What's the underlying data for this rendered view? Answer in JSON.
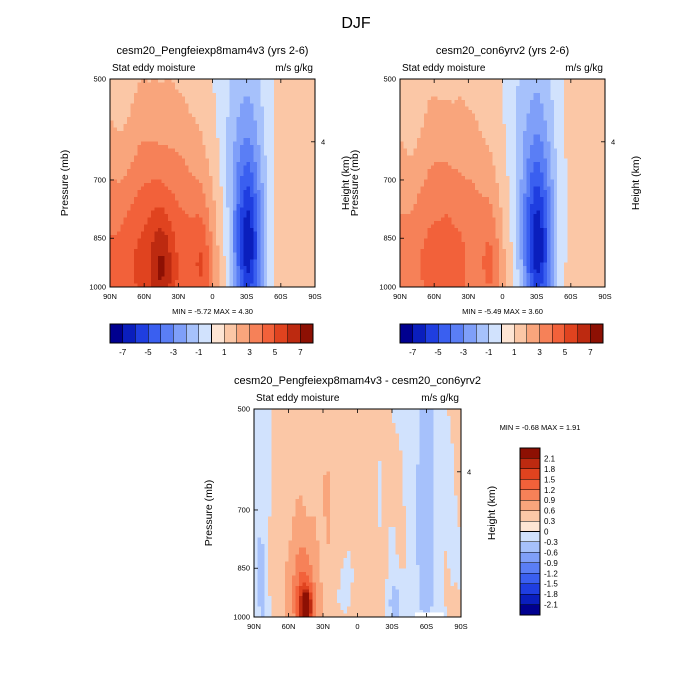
{
  "page": {
    "title": "DJF"
  },
  "colors": {
    "background": "#ffffff",
    "blues": [
      "#00008f",
      "#0a1ebd",
      "#1f3ee0",
      "#3a5ff0",
      "#5a7ef5",
      "#7f9ff9",
      "#a6c1fb",
      "#d1e2fd"
    ],
    "reds": [
      "#fde5d4",
      "#fbc7a6",
      "#f9a57c",
      "#f68158",
      "#f2613a",
      "#e0431f",
      "#bd2a10",
      "#8d1003"
    ]
  },
  "chart_data": [
    {
      "id": "top-left",
      "type": "heatmap",
      "title": "cesm20_Pengfeiexp8mam4v3 (yrs 2-6)",
      "left_label": "Stat eddy moisture",
      "right_label": "m/s g/kg",
      "xlabel": "",
      "ylabel": "Pressure (mb)",
      "right_ylabel": "Height (km)",
      "xlim": [
        90,
        -90
      ],
      "x_ticks": [
        90,
        60,
        30,
        0,
        -30,
        -60,
        -90
      ],
      "x_tick_labels": [
        "90N",
        "60N",
        "30N",
        "0",
        "30S",
        "60S",
        "90S"
      ],
      "y_scale": "log",
      "ylim": [
        1000,
        500
      ],
      "y_ticks": [
        500,
        700,
        850,
        1000
      ],
      "y_tick_labels": [
        "500",
        "700",
        "850",
        "1000"
      ],
      "right_y_ticks": [
        4
      ],
      "min_max_text": "MIN =  -5.72  MAX =   4.30",
      "colorbar": {
        "orientation": "horizontal",
        "levels": [
          -7,
          -6,
          -5,
          -4,
          -3,
          -2,
          -1,
          0,
          1,
          2,
          3,
          4,
          5,
          6,
          7
        ],
        "labels": [
          "-7",
          "-5",
          "-3",
          "-1",
          "1",
          "3",
          "5",
          "7"
        ]
      },
      "fields": [
        {
          "x": 56,
          "w": 50,
          "p": 925,
          "hp": 250,
          "amp": 4.3
        },
        {
          "x": 45,
          "w": 7,
          "p": 945,
          "hp": 110,
          "amp": 2.0
        },
        {
          "x": 9,
          "w": 6,
          "p": 930,
          "hp": 130,
          "amp": 1.5
        },
        {
          "x": -31,
          "w": 9,
          "p": 880,
          "hp": 180,
          "amp": -5.7
        },
        {
          "x": -26,
          "w": 18,
          "p": 770,
          "hp": 320,
          "amp": -2.2
        },
        {
          "x": -62,
          "w": 22,
          "p": 700,
          "hp": 400,
          "amp": 0.5
        },
        {
          "x": 80,
          "w": 8,
          "p": 650,
          "hp": 300,
          "amp": -0.6
        }
      ]
    },
    {
      "id": "top-right",
      "type": "heatmap",
      "title": "cesm20_con6yrv2 (yrs 2-6)",
      "left_label": "Stat eddy moisture",
      "right_label": "m/s g/kg",
      "xlabel": "",
      "ylabel": "Pressure (mb)",
      "right_ylabel": "Height (km)",
      "xlim": [
        90,
        -90
      ],
      "x_ticks": [
        90,
        60,
        30,
        0,
        -30,
        -60,
        -90
      ],
      "x_tick_labels": [
        "90N",
        "60N",
        "30N",
        "0",
        "30S",
        "60S",
        "90S"
      ],
      "y_scale": "log",
      "ylim": [
        1000,
        500
      ],
      "y_ticks": [
        500,
        700,
        850,
        1000
      ],
      "y_tick_labels": [
        "500",
        "700",
        "850",
        "1000"
      ],
      "right_y_ticks": [
        4
      ],
      "min_max_text": "MIN =  -5.49  MAX =   3.60",
      "colorbar": {
        "orientation": "horizontal",
        "levels": [
          -7,
          -6,
          -5,
          -4,
          -3,
          -2,
          -1,
          0,
          1,
          2,
          3,
          4,
          5,
          6,
          7
        ],
        "labels": [
          "-7",
          "-5",
          "-3",
          "-1",
          "1",
          "3",
          "5",
          "7"
        ]
      },
      "fields": [
        {
          "x": 55,
          "w": 48,
          "p": 920,
          "hp": 250,
          "amp": 3.4
        },
        {
          "x": 10,
          "w": 6,
          "p": 930,
          "hp": 130,
          "amp": 1.2
        },
        {
          "x": -31,
          "w": 9,
          "p": 880,
          "hp": 180,
          "amp": -5.5
        },
        {
          "x": -26,
          "w": 18,
          "p": 770,
          "hp": 320,
          "amp": -2.2
        },
        {
          "x": -62,
          "w": 22,
          "p": 700,
          "hp": 400,
          "amp": 0.5
        },
        {
          "x": 80,
          "w": 8,
          "p": 650,
          "hp": 300,
          "amp": -0.6
        }
      ]
    },
    {
      "id": "bottom",
      "type": "heatmap",
      "title": "cesm20_Pengfeiexp8mam4v3 - cesm20_con6yrv2",
      "left_label": "Stat eddy moisture",
      "right_label": "m/s g/kg",
      "xlabel": "",
      "ylabel": "Pressure (mb)",
      "right_ylabel": "Height (km)",
      "xlim": [
        90,
        -90
      ],
      "x_ticks": [
        90,
        60,
        30,
        0,
        -30,
        -60,
        -90
      ],
      "x_tick_labels": [
        "90N",
        "60N",
        "30N",
        "0",
        "30S",
        "60S",
        "90S"
      ],
      "y_scale": "log",
      "ylim": [
        1000,
        500
      ],
      "y_ticks": [
        500,
        700,
        850,
        1000
      ],
      "y_tick_labels": [
        "500",
        "700",
        "850",
        "1000"
      ],
      "right_y_ticks": [
        4
      ],
      "min_max_text": "MIN =  -0.68  MAX =   1.91",
      "colorbar": {
        "orientation": "vertical",
        "levels": [
          -2.1,
          -1.8,
          -1.5,
          -1.2,
          -0.9,
          -0.6,
          -0.3,
          0,
          0.3,
          0.6,
          0.9,
          1.2,
          1.5,
          1.8,
          2.1
        ],
        "labels": [
          "-2.1",
          "-1.8",
          "-1.5",
          "-1.2",
          "-0.9",
          "-0.6",
          "-0.3",
          "0",
          "0.3",
          "0.6",
          "0.9",
          "1.2",
          "1.5",
          "1.8",
          "2.1"
        ]
      },
      "fields": [
        {
          "x": 45,
          "w": 4,
          "p": 975,
          "hp": 45,
          "amp": 1.9
        },
        {
          "x": 49,
          "w": 8,
          "p": 920,
          "hp": 100,
          "amp": 0.65
        },
        {
          "x": 35,
          "w": 28,
          "p": 800,
          "hp": 380,
          "amp": 0.3
        },
        {
          "x": -59,
          "w": 8,
          "p": 700,
          "hp": 400,
          "amp": -0.45
        },
        {
          "x": -32,
          "w": 4,
          "p": 960,
          "hp": 50,
          "amp": -0.5
        },
        {
          "x": 84,
          "w": 5,
          "p": 800,
          "hp": 300,
          "amp": -0.4
        },
        {
          "x": 12,
          "w": 6,
          "p": 900,
          "hp": 100,
          "amp": -0.32
        }
      ],
      "blank_region": {
        "x": [
          -50,
          -75
        ],
        "p": [
          985,
          1000
        ]
      }
    }
  ]
}
